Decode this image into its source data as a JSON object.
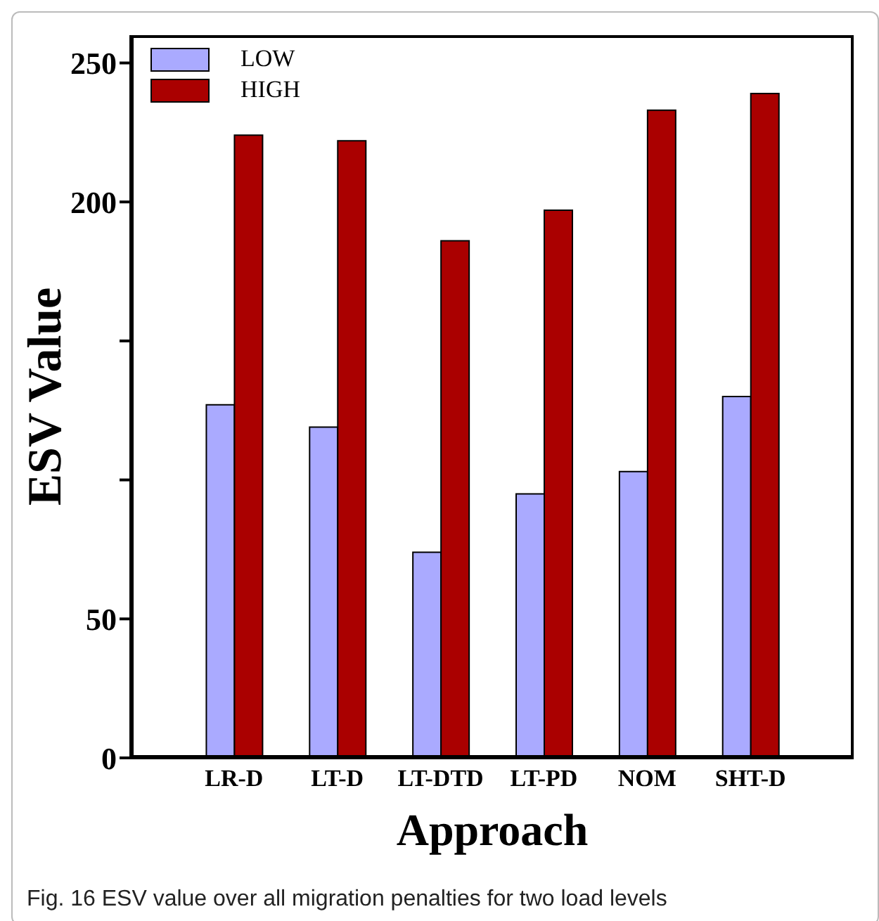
{
  "chart_data": {
    "type": "bar",
    "xlabel": "Approach",
    "ylabel": "ESV Value",
    "categories": [
      "LR-D",
      "LT-D",
      "LT-DTD",
      "LT-PD",
      "NOM",
      "SHT-D"
    ],
    "series": [
      {
        "name": "LOW",
        "color": "#aaaaff",
        "values": [
          127,
          119,
          74,
          95,
          103,
          130
        ]
      },
      {
        "name": "HIGH",
        "color": "#aa0000",
        "values": [
          224,
          222,
          186,
          197,
          233,
          239
        ]
      }
    ],
    "ylim": [
      0,
      260
    ],
    "yticks": [
      0,
      50,
      {
        "value": 100,
        "label": null
      },
      {
        "value": 150,
        "label": null
      },
      200,
      250
    ],
    "grid": false,
    "legend": "top left",
    "annotations": [
      "Fig. 16 ESV value over all migration penalties for two load levels"
    ]
  }
}
